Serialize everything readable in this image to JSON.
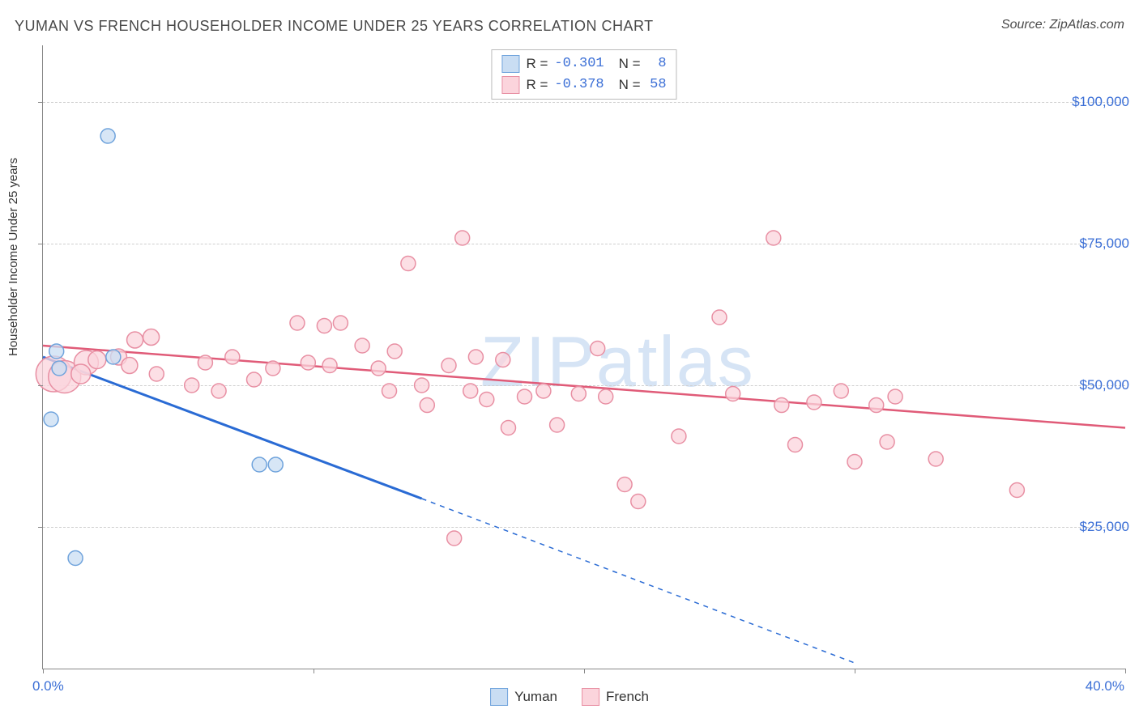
{
  "title": "YUMAN VS FRENCH HOUSEHOLDER INCOME UNDER 25 YEARS CORRELATION CHART",
  "source_label": "Source: ZipAtlas.com",
  "watermark": "ZIPatlas",
  "ylabel": "Householder Income Under 25 years",
  "chart": {
    "type": "scatter-with-regression",
    "xlim": [
      0,
      40
    ],
    "ylim": [
      0,
      110000
    ],
    "x_unit": "%",
    "y_unit": "$",
    "xtick_min_label": "0.0%",
    "xtick_max_label": "40.0%",
    "xtick_positions_pct": [
      0,
      10,
      20,
      30,
      40
    ],
    "yticks": [
      {
        "value": 25000,
        "label": "$25,000"
      },
      {
        "value": 50000,
        "label": "$50,000"
      },
      {
        "value": 75000,
        "label": "$75,000"
      },
      {
        "value": 100000,
        "label": "$100,000"
      }
    ],
    "grid_color": "#cfcfcf",
    "background_color": "#ffffff",
    "series": [
      {
        "name": "Yuman",
        "marker_fill": "#c9ddf3",
        "marker_stroke": "#6fa3dc",
        "line_color": "#2a6bd4",
        "line_width": 3,
        "R": "-0.301",
        "N": "8",
        "points": [
          {
            "x": 2.4,
            "y": 94000,
            "r": 9
          },
          {
            "x": 0.5,
            "y": 56000,
            "r": 9
          },
          {
            "x": 2.6,
            "y": 55000,
            "r": 9
          },
          {
            "x": 0.6,
            "y": 53000,
            "r": 9
          },
          {
            "x": 0.3,
            "y": 44000,
            "r": 9
          },
          {
            "x": 8.0,
            "y": 36000,
            "r": 9
          },
          {
            "x": 8.6,
            "y": 36000,
            "r": 9
          },
          {
            "x": 1.2,
            "y": 19500,
            "r": 9
          }
        ],
        "regression": {
          "x1": 0,
          "y1": 55000,
          "x2_solid": 14,
          "y2_solid": 30000,
          "x2": 30,
          "y2": 1000
        }
      },
      {
        "name": "French",
        "marker_fill": "#fbd4dc",
        "marker_stroke": "#e88fa3",
        "line_color": "#e05b78",
        "line_width": 2.5,
        "R": "-0.378",
        "N": "58",
        "points": [
          {
            "x": 0.4,
            "y": 52000,
            "r": 22
          },
          {
            "x": 0.8,
            "y": 51500,
            "r": 20
          },
          {
            "x": 1.6,
            "y": 54000,
            "r": 15
          },
          {
            "x": 1.4,
            "y": 52000,
            "r": 12
          },
          {
            "x": 2.0,
            "y": 54500,
            "r": 11
          },
          {
            "x": 2.8,
            "y": 55000,
            "r": 10
          },
          {
            "x": 3.4,
            "y": 58000,
            "r": 10
          },
          {
            "x": 4.0,
            "y": 58500,
            "r": 10
          },
          {
            "x": 3.2,
            "y": 53500,
            "r": 10
          },
          {
            "x": 4.2,
            "y": 52000,
            "r": 9
          },
          {
            "x": 5.5,
            "y": 50000,
            "r": 9
          },
          {
            "x": 6.0,
            "y": 54000,
            "r": 9
          },
          {
            "x": 6.5,
            "y": 49000,
            "r": 9
          },
          {
            "x": 7.0,
            "y": 55000,
            "r": 9
          },
          {
            "x": 7.8,
            "y": 51000,
            "r": 9
          },
          {
            "x": 8.5,
            "y": 53000,
            "r": 9
          },
          {
            "x": 9.4,
            "y": 61000,
            "r": 9
          },
          {
            "x": 9.8,
            "y": 54000,
            "r": 9
          },
          {
            "x": 10.4,
            "y": 60500,
            "r": 9
          },
          {
            "x": 11.0,
            "y": 61000,
            "r": 9
          },
          {
            "x": 10.6,
            "y": 53500,
            "r": 9
          },
          {
            "x": 11.8,
            "y": 57000,
            "r": 9
          },
          {
            "x": 12.4,
            "y": 53000,
            "r": 9
          },
          {
            "x": 12.8,
            "y": 49000,
            "r": 9
          },
          {
            "x": 13.0,
            "y": 56000,
            "r": 9
          },
          {
            "x": 13.5,
            "y": 71500,
            "r": 9
          },
          {
            "x": 14.0,
            "y": 50000,
            "r": 9
          },
          {
            "x": 14.2,
            "y": 46500,
            "r": 9
          },
          {
            "x": 15.0,
            "y": 53500,
            "r": 9
          },
          {
            "x": 15.5,
            "y": 76000,
            "r": 9
          },
          {
            "x": 15.8,
            "y": 49000,
            "r": 9
          },
          {
            "x": 16.0,
            "y": 55000,
            "r": 9
          },
          {
            "x": 16.4,
            "y": 47500,
            "r": 9
          },
          {
            "x": 17.0,
            "y": 54500,
            "r": 9
          },
          {
            "x": 17.2,
            "y": 42500,
            "r": 9
          },
          {
            "x": 17.8,
            "y": 48000,
            "r": 9
          },
          {
            "x": 15.2,
            "y": 23000,
            "r": 9
          },
          {
            "x": 18.5,
            "y": 49000,
            "r": 9
          },
          {
            "x": 19.0,
            "y": 43000,
            "r": 9
          },
          {
            "x": 19.8,
            "y": 48500,
            "r": 9
          },
          {
            "x": 20.5,
            "y": 56500,
            "r": 9
          },
          {
            "x": 20.8,
            "y": 48000,
            "r": 9
          },
          {
            "x": 21.5,
            "y": 32500,
            "r": 9
          },
          {
            "x": 22.0,
            "y": 29500,
            "r": 9
          },
          {
            "x": 23.5,
            "y": 41000,
            "r": 9
          },
          {
            "x": 25.0,
            "y": 62000,
            "r": 9
          },
          {
            "x": 25.5,
            "y": 48500,
            "r": 9
          },
          {
            "x": 27.0,
            "y": 76000,
            "r": 9
          },
          {
            "x": 27.3,
            "y": 46500,
            "r": 9
          },
          {
            "x": 27.8,
            "y": 39500,
            "r": 9
          },
          {
            "x": 28.5,
            "y": 47000,
            "r": 9
          },
          {
            "x": 29.5,
            "y": 49000,
            "r": 9
          },
          {
            "x": 30.0,
            "y": 36500,
            "r": 9
          },
          {
            "x": 30.8,
            "y": 46500,
            "r": 9
          },
          {
            "x": 31.2,
            "y": 40000,
            "r": 9
          },
          {
            "x": 31.5,
            "y": 48000,
            "r": 9
          },
          {
            "x": 33.0,
            "y": 37000,
            "r": 9
          },
          {
            "x": 36.0,
            "y": 31500,
            "r": 9
          }
        ],
        "regression": {
          "x1": 0,
          "y1": 57000,
          "x2_solid": 40,
          "y2_solid": 42500,
          "x2": 40,
          "y2": 42500
        }
      }
    ]
  },
  "bottom_legend": [
    {
      "swatch": "blue",
      "label": "Yuman"
    },
    {
      "swatch": "pink",
      "label": "French"
    }
  ]
}
